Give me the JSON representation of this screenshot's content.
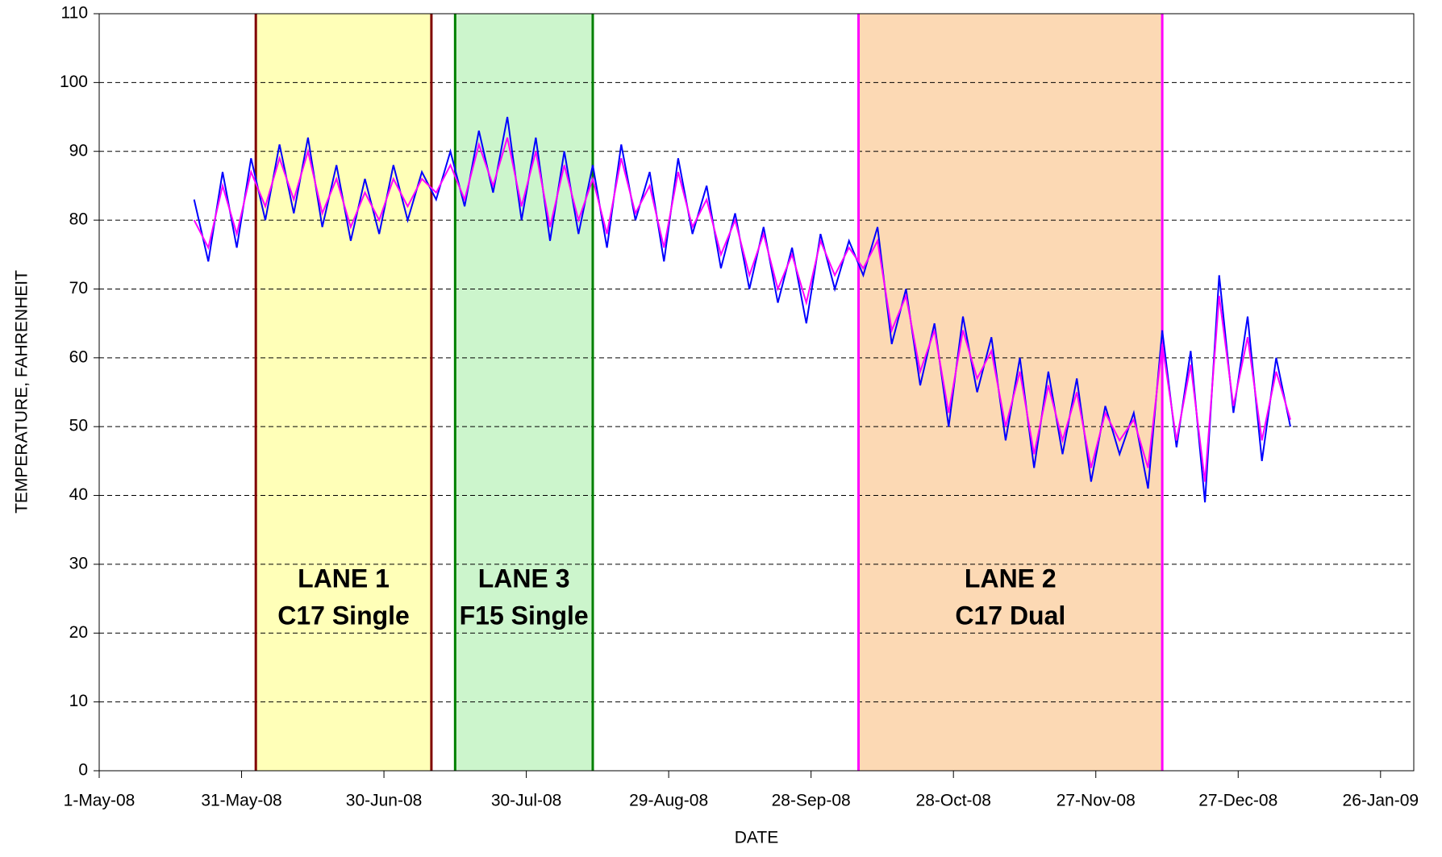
{
  "chart_data": {
    "type": "line",
    "xlabel": "DATE",
    "ylabel": "TEMPERATURE,  FAHRENHEIT",
    "x": [
      "2008-05-21",
      "2008-05-24",
      "2008-05-27",
      "2008-05-30",
      "2008-06-02",
      "2008-06-05",
      "2008-06-08",
      "2008-06-11",
      "2008-06-14",
      "2008-06-17",
      "2008-06-20",
      "2008-06-23",
      "2008-06-26",
      "2008-06-29",
      "2008-07-02",
      "2008-07-05",
      "2008-07-08",
      "2008-07-11",
      "2008-07-14",
      "2008-07-17",
      "2008-07-20",
      "2008-07-23",
      "2008-07-26",
      "2008-07-29",
      "2008-08-01",
      "2008-08-04",
      "2008-08-07",
      "2008-08-10",
      "2008-08-13",
      "2008-08-16",
      "2008-08-19",
      "2008-08-22",
      "2008-08-25",
      "2008-08-28",
      "2008-08-31",
      "2008-09-03",
      "2008-09-06",
      "2008-09-09",
      "2008-09-12",
      "2008-09-15",
      "2008-09-18",
      "2008-09-21",
      "2008-09-24",
      "2008-09-27",
      "2008-09-30",
      "2008-10-03",
      "2008-10-06",
      "2008-10-09",
      "2008-10-12",
      "2008-10-15",
      "2008-10-18",
      "2008-10-21",
      "2008-10-24",
      "2008-10-27",
      "2008-10-30",
      "2008-11-02",
      "2008-11-05",
      "2008-11-08",
      "2008-11-11",
      "2008-11-14",
      "2008-11-17",
      "2008-11-20",
      "2008-11-23",
      "2008-11-26",
      "2008-11-29",
      "2008-12-02",
      "2008-12-05",
      "2008-12-08",
      "2008-12-11",
      "2008-12-14",
      "2008-12-17",
      "2008-12-20",
      "2008-12-23",
      "2008-12-26",
      "2008-12-29",
      "2009-01-01",
      "2009-01-04",
      "2009-01-07"
    ],
    "series": [
      {
        "color": "#0000ff",
        "values": [
          83,
          74,
          87,
          76,
          89,
          80,
          91,
          81,
          92,
          79,
          88,
          77,
          86,
          78,
          88,
          80,
          87,
          83,
          90,
          82,
          93,
          84,
          95,
          80,
          92,
          77,
          90,
          78,
          88,
          76,
          91,
          80,
          87,
          74,
          89,
          78,
          85,
          73,
          81,
          70,
          79,
          68,
          76,
          65,
          78,
          70,
          77,
          72,
          79,
          62,
          70,
          56,
          65,
          50,
          66,
          55,
          63,
          48,
          60,
          44,
          58,
          46,
          57,
          42,
          53,
          46,
          52,
          41,
          64,
          47,
          61,
          39,
          72,
          52,
          66,
          45,
          60,
          50
        ]
      },
      {
        "color": "#ff00ff",
        "values": [
          80,
          76,
          85,
          78,
          87,
          82,
          89,
          83,
          90,
          81,
          86,
          79,
          84,
          80,
          86,
          82,
          86,
          84,
          88,
          83,
          91,
          85,
          92,
          82,
          90,
          79,
          88,
          80,
          86,
          78,
          89,
          81,
          85,
          76,
          87,
          79,
          83,
          75,
          80,
          72,
          78,
          70,
          75,
          68,
          77,
          72,
          76,
          73,
          77,
          64,
          69,
          58,
          64,
          52,
          64,
          57,
          61,
          50,
          58,
          46,
          56,
          48,
          55,
          44,
          52,
          48,
          51,
          44,
          62,
          48,
          59,
          42,
          69,
          53,
          63,
          48,
          58,
          51
        ]
      }
    ],
    "regions": [
      {
        "start": "2008-06-03",
        "end": "2008-07-10",
        "color": "#ffffb8",
        "line_color": "#800000",
        "label": [
          "LANE 1",
          "C17 Single"
        ]
      },
      {
        "start": "2008-07-15",
        "end": "2008-08-13",
        "color": "#ccf5cc",
        "line_color": "#008000",
        "label": [
          "LANE 3",
          "F15 Single"
        ]
      },
      {
        "start": "2008-10-08",
        "end": "2008-12-11",
        "color": "#fcd9b4",
        "line_color": "#ff00ff",
        "label": [
          "LANE 2",
          "C17 Dual"
        ]
      }
    ],
    "xlim": [
      "2008-05-01",
      "2009-02-02"
    ],
    "xticks": [
      {
        "value": "2008-05-01",
        "label": "1-May-08"
      },
      {
        "value": "2008-05-31",
        "label": "31-May-08"
      },
      {
        "value": "2008-06-30",
        "label": "30-Jun-08"
      },
      {
        "value": "2008-07-30",
        "label": "30-Jul-08"
      },
      {
        "value": "2008-08-29",
        "label": "29-Aug-08"
      },
      {
        "value": "2008-09-28",
        "label": "28-Sep-08"
      },
      {
        "value": "2008-10-28",
        "label": "28-Oct-08"
      },
      {
        "value": "2008-11-27",
        "label": "27-Nov-08"
      },
      {
        "value": "2008-12-27",
        "label": "27-Dec-08"
      },
      {
        "value": "2009-01-26",
        "label": "26-Jan-09"
      }
    ],
    "ylim": [
      0,
      110
    ],
    "yticks": [
      0,
      10,
      20,
      30,
      40,
      50,
      60,
      70,
      80,
      90,
      100,
      110
    ],
    "grid": true
  }
}
